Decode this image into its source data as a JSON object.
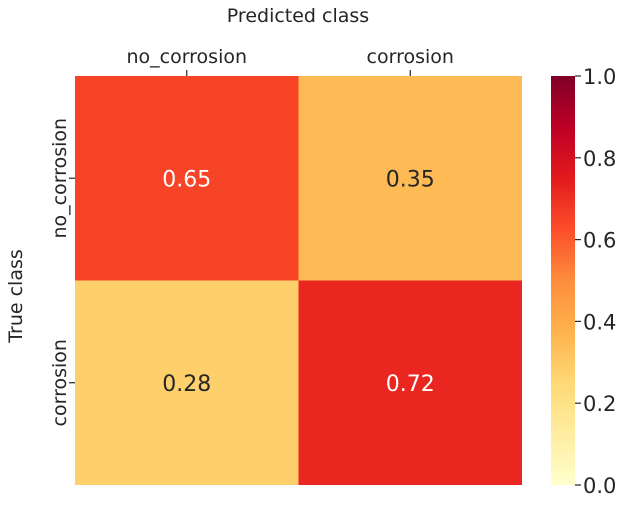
{
  "chart_data": {
    "type": "heatmap",
    "xlabel": "Predicted class",
    "ylabel": "True class",
    "x_categories": [
      "no_corrosion",
      "corrosion"
    ],
    "y_categories": [
      "no_corrosion",
      "corrosion"
    ],
    "values": [
      [
        0.65,
        0.35
      ],
      [
        0.28,
        0.72
      ]
    ],
    "value_labels": [
      [
        "0.65",
        "0.35"
      ],
      [
        "0.28",
        "0.72"
      ]
    ],
    "colorbar": {
      "range": [
        0.0,
        1.0
      ],
      "ticks": [
        0.0,
        0.2,
        0.4,
        0.6,
        0.8,
        1.0
      ],
      "tick_labels": [
        "0.0",
        "0.2",
        "0.4",
        "0.6",
        "0.8",
        "1.0"
      ],
      "colormap": "YlOrRd"
    },
    "x_axis_position": "top",
    "grid": false
  }
}
